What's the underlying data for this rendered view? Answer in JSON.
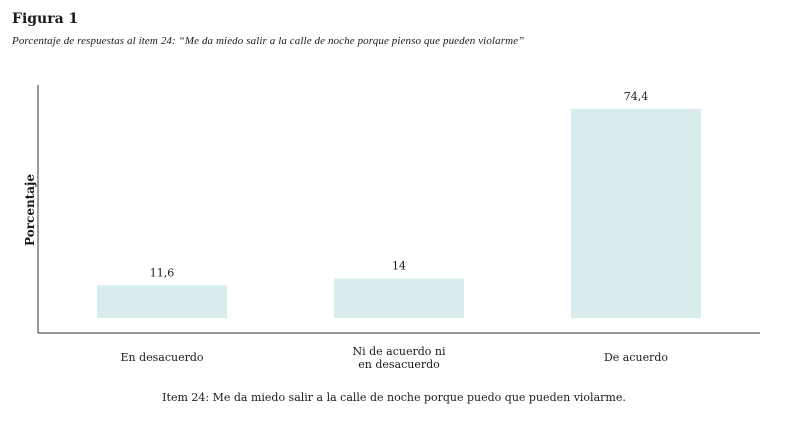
{
  "figure": {
    "label": "Figura 1",
    "title": "Porcentaje de respuestas al ítem 24: “Me da miedo salir a la calle de noche porque pienso que pueden violarme”"
  },
  "chart_data": {
    "type": "bar",
    "categories": [
      "En desacuerdo",
      "Ni de acuerdo ni en desacuerdo",
      "De acuerdo"
    ],
    "category_lines": [
      [
        "En desacuerdo"
      ],
      [
        "Ni de acuerdo ni",
        "en desacuerdo"
      ],
      [
        "De acuerdo"
      ]
    ],
    "values": [
      11.6,
      14,
      74.4
    ],
    "value_labels": [
      "11,6",
      "14",
      "74,4"
    ],
    "ylabel": "Porcentaje",
    "xlabel": "Item 24: Me da miedo salir a la calle de noche porque puedo que pueden violarme.",
    "ylim": [
      0,
      80
    ],
    "grid": false,
    "bar_color": "#d8ecee",
    "axis_color": "#333333"
  }
}
